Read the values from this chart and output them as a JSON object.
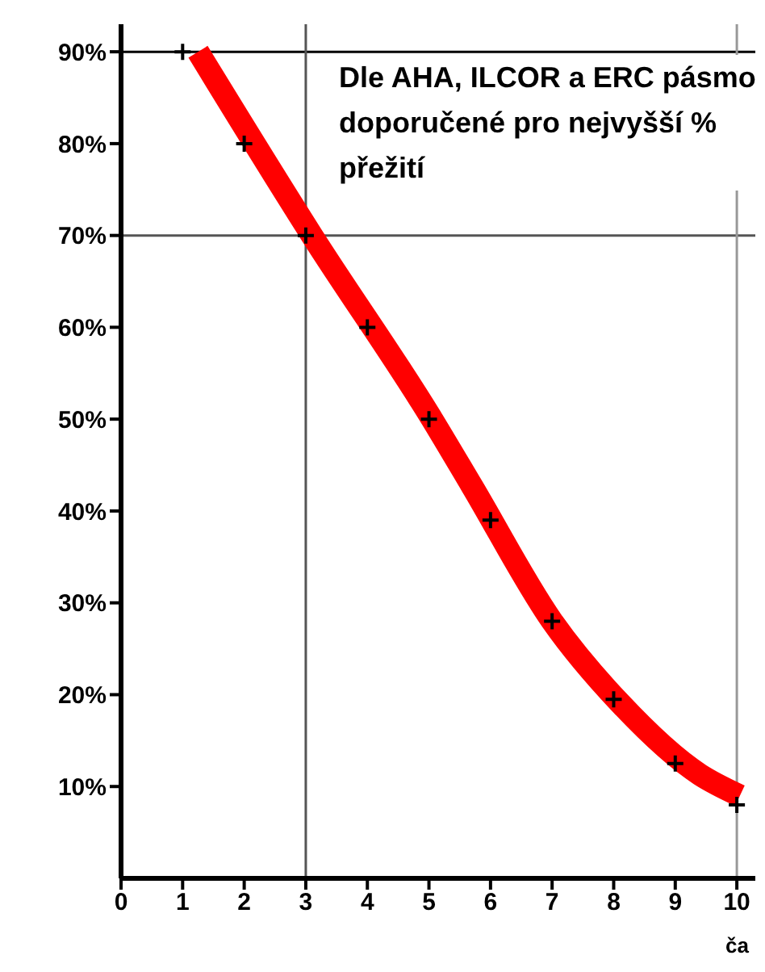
{
  "chart_data": {
    "type": "line",
    "xlabel": "ča",
    "series": [
      {
        "color": "#ff0000",
        "x": [
          1.25,
          3.1,
          5.05,
          5.7,
          7.0,
          8.1,
          9.4,
          10.05
        ],
        "values": [
          90,
          70,
          50,
          42.7,
          28,
          19.1,
          11.3,
          9
        ]
      },
      {
        "type": "scatter",
        "color": "#000000",
        "marker": "cross",
        "x": [
          1,
          2,
          3,
          4,
          5,
          6,
          7,
          8,
          9,
          10
        ],
        "values": [
          90,
          80,
          70,
          60,
          50,
          39,
          28,
          19.5,
          12.5,
          8
        ]
      }
    ],
    "xlim": [
      0,
      10.3
    ],
    "xticks": [
      0,
      1,
      2,
      3,
      4,
      5,
      6,
      7,
      8,
      9,
      10
    ],
    "ylim": [
      0,
      93
    ],
    "yticks": [
      {
        "value": 10,
        "label": "10%"
      },
      {
        "value": 20,
        "label": "20%"
      },
      {
        "value": 30,
        "label": "30%"
      },
      {
        "value": 40,
        "label": "40%"
      },
      {
        "value": 50,
        "label": "50%"
      },
      {
        "value": 60,
        "label": "60%"
      },
      {
        "value": 70,
        "label": "70%"
      },
      {
        "value": 80,
        "label": "80%"
      },
      {
        "value": 90,
        "label": "90%"
      }
    ],
    "ref_lines": [
      {
        "axis": "y",
        "value": 90,
        "color": "#000000"
      },
      {
        "axis": "y",
        "value": 70,
        "color": "#555555"
      },
      {
        "axis": "x",
        "value": 3,
        "color": "#555555"
      },
      {
        "axis": "x",
        "value": 10,
        "color": "#999999"
      }
    ],
    "annotations": [
      "Dle AHA, ILCOR a ERC pásmo doporučené pro nejvyšší % přežití"
    ],
    "grid": false,
    "legend": false
  }
}
